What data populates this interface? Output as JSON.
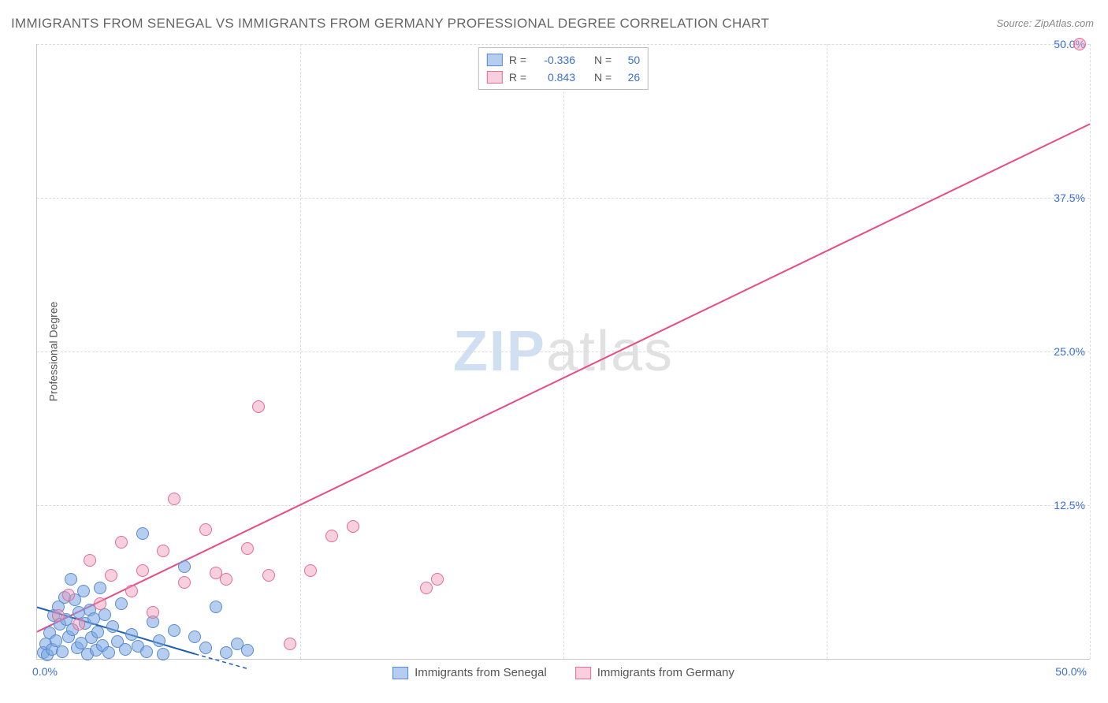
{
  "title": "IMMIGRANTS FROM SENEGAL VS IMMIGRANTS FROM GERMANY PROFESSIONAL DEGREE CORRELATION CHART",
  "source": "Source: ZipAtlas.com",
  "y_axis_label": "Professional Degree",
  "watermark": {
    "zip": "ZIP",
    "atlas": "atlas"
  },
  "chart": {
    "type": "scatter",
    "xlim": [
      0,
      50
    ],
    "ylim": [
      0,
      50
    ],
    "x_ticks": {
      "min": "0.0%",
      "max": "50.0%"
    },
    "y_ticks": [
      {
        "value": 12.5,
        "label": "12.5%"
      },
      {
        "value": 25.0,
        "label": "25.0%"
      },
      {
        "value": 37.5,
        "label": "37.5%"
      },
      {
        "value": 50.0,
        "label": "50.0%"
      }
    ],
    "x_gridlines": [
      12.5,
      25.0,
      37.5,
      50.0
    ],
    "background_color": "#ffffff",
    "grid_color": "#dcdcdc",
    "series": [
      {
        "id": "senegal",
        "label": "Immigrants from Senegal",
        "marker_fill": "rgba(120,165,225,0.55)",
        "marker_stroke": "#5a8ad0",
        "line_color": "#1f5fb0",
        "r_value": "-0.336",
        "n_value": "50",
        "trend": {
          "x1": 0,
          "y1": 4.2,
          "x2": 7.5,
          "y2": 0.4,
          "dash_x2": 10.0,
          "dash_y2": -0.8
        },
        "points": [
          [
            0.3,
            0.5
          ],
          [
            0.4,
            1.2
          ],
          [
            0.5,
            0.3
          ],
          [
            0.6,
            2.1
          ],
          [
            0.7,
            0.8
          ],
          [
            0.8,
            3.5
          ],
          [
            0.9,
            1.5
          ],
          [
            1.0,
            4.2
          ],
          [
            1.1,
            2.8
          ],
          [
            1.2,
            0.6
          ],
          [
            1.3,
            5.0
          ],
          [
            1.4,
            3.2
          ],
          [
            1.5,
            1.8
          ],
          [
            1.6,
            6.5
          ],
          [
            1.7,
            2.4
          ],
          [
            1.8,
            4.8
          ],
          [
            1.9,
            0.9
          ],
          [
            2.0,
            3.8
          ],
          [
            2.1,
            1.3
          ],
          [
            2.2,
            5.5
          ],
          [
            2.3,
            2.9
          ],
          [
            2.4,
            0.4
          ],
          [
            2.5,
            4.0
          ],
          [
            2.6,
            1.7
          ],
          [
            2.7,
            3.3
          ],
          [
            2.8,
            0.7
          ],
          [
            2.9,
            2.2
          ],
          [
            3.0,
            5.8
          ],
          [
            3.1,
            1.1
          ],
          [
            3.2,
            3.6
          ],
          [
            3.4,
            0.5
          ],
          [
            3.6,
            2.6
          ],
          [
            3.8,
            1.4
          ],
          [
            4.0,
            4.5
          ],
          [
            4.2,
            0.8
          ],
          [
            4.5,
            2.0
          ],
          [
            4.8,
            1.0
          ],
          [
            5.0,
            10.2
          ],
          [
            5.2,
            0.6
          ],
          [
            5.5,
            3.0
          ],
          [
            5.8,
            1.5
          ],
          [
            6.0,
            0.4
          ],
          [
            6.5,
            2.3
          ],
          [
            7.0,
            7.5
          ],
          [
            7.5,
            1.8
          ],
          [
            8.0,
            0.9
          ],
          [
            8.5,
            4.2
          ],
          [
            9.0,
            0.5
          ],
          [
            9.5,
            1.2
          ],
          [
            10.0,
            0.7
          ]
        ]
      },
      {
        "id": "germany",
        "label": "Immigrants from Germany",
        "marker_fill": "rgba(240,150,180,0.45)",
        "marker_stroke": "#e66a9a",
        "line_color": "#e84c88",
        "r_value": "0.843",
        "n_value": "26",
        "trend": {
          "x1": 0,
          "y1": 2.2,
          "x2": 50,
          "y2": 43.5
        },
        "points": [
          [
            1.0,
            3.5
          ],
          [
            1.5,
            5.2
          ],
          [
            2.0,
            2.8
          ],
          [
            2.5,
            8.0
          ],
          [
            3.0,
            4.5
          ],
          [
            3.5,
            6.8
          ],
          [
            4.0,
            9.5
          ],
          [
            4.5,
            5.5
          ],
          [
            5.0,
            7.2
          ],
          [
            5.5,
            3.8
          ],
          [
            6.0,
            8.8
          ],
          [
            6.5,
            13.0
          ],
          [
            7.0,
            6.2
          ],
          [
            8.0,
            10.5
          ],
          [
            8.5,
            7.0
          ],
          [
            9.0,
            6.5
          ],
          [
            10.0,
            9.0
          ],
          [
            10.5,
            20.5
          ],
          [
            11.0,
            6.8
          ],
          [
            12.0,
            1.2
          ],
          [
            13.0,
            7.2
          ],
          [
            14.0,
            10.0
          ],
          [
            15.0,
            10.8
          ],
          [
            18.5,
            5.8
          ],
          [
            19.0,
            6.5
          ],
          [
            49.5,
            50.0
          ]
        ]
      }
    ]
  },
  "legend_top": {
    "r_label": "R =",
    "n_label": "N ="
  }
}
